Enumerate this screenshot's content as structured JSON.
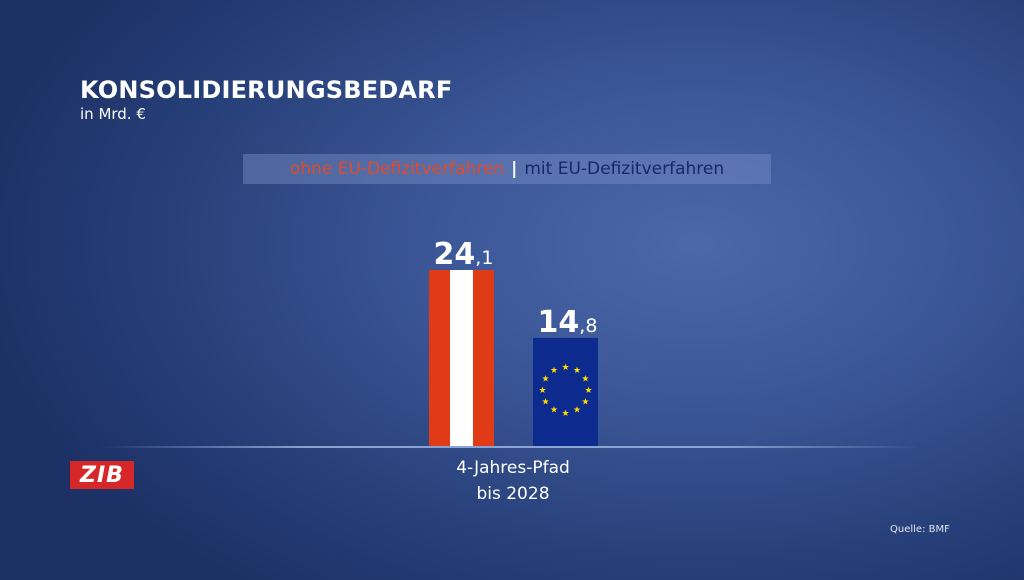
{
  "chart_data": {
    "type": "bar",
    "title": "KONSOLIDIERUNGSBEDARF",
    "subtitle": "in Mrd. €",
    "legend": [
      {
        "name": "ohne EU-Defizitverfahren",
        "color": "#e04a2b"
      },
      {
        "name": "mit EU-Defizitverfahren",
        "color": "#14286e"
      }
    ],
    "legend_separator": "|",
    "legend_placement": "top-center",
    "categories": [
      "4-Jahres-Pfad bis 2028"
    ],
    "category_lines": [
      "4-Jahres-Pfad",
      "bis 2028"
    ],
    "series": [
      {
        "name": "ohne EU-Defizitverfahren",
        "values": [
          24.1
        ],
        "label_int": "24",
        "label_dec": ",1",
        "style": "austria-flag"
      },
      {
        "name": "mit EU-Defizitverfahren",
        "values": [
          14.8
        ],
        "label_int": "14",
        "label_dec": ",8",
        "style": "eu-flag"
      }
    ],
    "ylim": [
      0,
      30
    ],
    "grid": false
  },
  "branding": {
    "logo": "ZIB"
  },
  "source": "Quelle: BMF"
}
